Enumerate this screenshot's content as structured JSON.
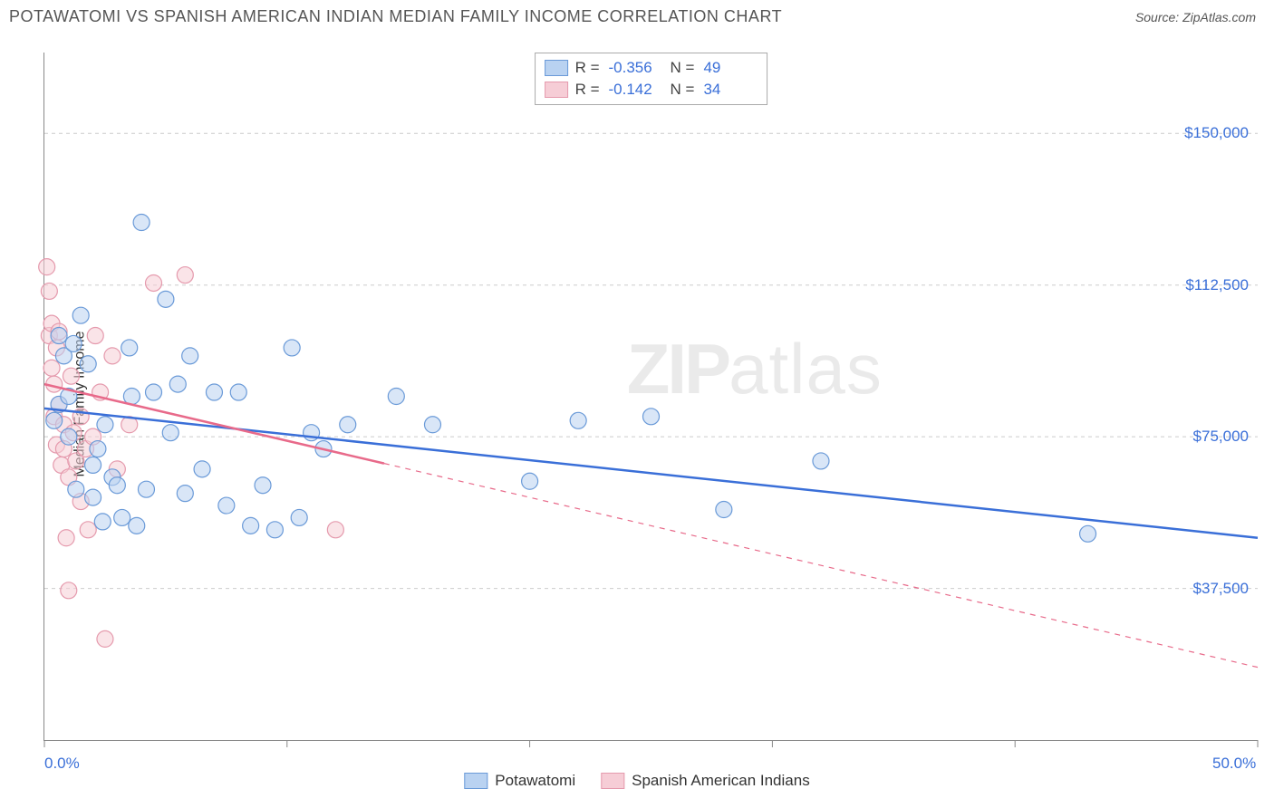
{
  "header": {
    "title": "POTAWATOMI VS SPANISH AMERICAN INDIAN MEDIAN FAMILY INCOME CORRELATION CHART",
    "source_label": "Source:",
    "source_name": "ZipAtlas.com"
  },
  "watermark": {
    "zip": "ZIP",
    "atlas": "atlas"
  },
  "chart": {
    "type": "scatter",
    "ylabel": "Median Family Income",
    "background_color": "#ffffff",
    "grid_color": "#cccccc",
    "axis_color": "#888888",
    "label_color_blue": "#3a6fd8",
    "xlim": [
      0,
      50
    ],
    "ylim": [
      0,
      170000
    ],
    "x_ticks": [
      0,
      10,
      20,
      30,
      40,
      50
    ],
    "x_tick_labels": {
      "0": "0.0%",
      "50": "50.0%"
    },
    "y_ticks": [
      37500,
      75000,
      112500,
      150000
    ],
    "y_tick_labels": [
      "$37,500",
      "$75,000",
      "$112,500",
      "$150,000"
    ],
    "marker_radius": 9,
    "marker_opacity": 0.55,
    "line_width": 2.5,
    "series": [
      {
        "name": "Potawatomi",
        "color_fill": "#b9d2f1",
        "color_stroke": "#6a9ad8",
        "R": "-0.356",
        "N": "49",
        "trend": {
          "x1": 0,
          "y1": 82000,
          "x2": 50,
          "y2": 50000,
          "solid_until_x": 50
        },
        "points": [
          [
            0.4,
            79000
          ],
          [
            0.6,
            83000
          ],
          [
            0.6,
            100000
          ],
          [
            0.8,
            95000
          ],
          [
            1.0,
            75000
          ],
          [
            1.0,
            85000
          ],
          [
            1.2,
            98000
          ],
          [
            1.3,
            62000
          ],
          [
            1.5,
            105000
          ],
          [
            1.8,
            93000
          ],
          [
            2.0,
            60000
          ],
          [
            2.0,
            68000
          ],
          [
            2.2,
            72000
          ],
          [
            2.4,
            54000
          ],
          [
            2.5,
            78000
          ],
          [
            2.8,
            65000
          ],
          [
            3.0,
            63000
          ],
          [
            3.2,
            55000
          ],
          [
            3.5,
            97000
          ],
          [
            3.6,
            85000
          ],
          [
            3.8,
            53000
          ],
          [
            4.0,
            128000
          ],
          [
            4.2,
            62000
          ],
          [
            4.5,
            86000
          ],
          [
            5.0,
            109000
          ],
          [
            5.2,
            76000
          ],
          [
            5.5,
            88000
          ],
          [
            5.8,
            61000
          ],
          [
            6.0,
            95000
          ],
          [
            6.5,
            67000
          ],
          [
            7.0,
            86000
          ],
          [
            7.5,
            58000
          ],
          [
            8.0,
            86000
          ],
          [
            8.5,
            53000
          ],
          [
            9.0,
            63000
          ],
          [
            9.5,
            52000
          ],
          [
            10.2,
            97000
          ],
          [
            10.5,
            55000
          ],
          [
            11.0,
            76000
          ],
          [
            11.5,
            72000
          ],
          [
            12.5,
            78000
          ],
          [
            14.5,
            85000
          ],
          [
            16.0,
            78000
          ],
          [
            20.0,
            64000
          ],
          [
            22.0,
            79000
          ],
          [
            25.0,
            80000
          ],
          [
            28.0,
            57000
          ],
          [
            32.0,
            69000
          ],
          [
            43.0,
            51000
          ]
        ]
      },
      {
        "name": "Spanish American Indians",
        "color_fill": "#f6cdd6",
        "color_stroke": "#e59aad",
        "R": "-0.142",
        "N": "34",
        "trend": {
          "x1": 0,
          "y1": 88000,
          "x2": 50,
          "y2": 18000,
          "solid_until_x": 14
        },
        "points": [
          [
            0.1,
            117000
          ],
          [
            0.2,
            111000
          ],
          [
            0.2,
            100000
          ],
          [
            0.3,
            103000
          ],
          [
            0.3,
            92000
          ],
          [
            0.4,
            88000
          ],
          [
            0.4,
            80000
          ],
          [
            0.5,
            97000
          ],
          [
            0.5,
            73000
          ],
          [
            0.6,
            101000
          ],
          [
            0.6,
            83000
          ],
          [
            0.7,
            68000
          ],
          [
            0.8,
            78000
          ],
          [
            0.8,
            72000
          ],
          [
            0.9,
            50000
          ],
          [
            1.0,
            65000
          ],
          [
            1.0,
            37000
          ],
          [
            1.1,
            90000
          ],
          [
            1.2,
            76000
          ],
          [
            1.3,
            69000
          ],
          [
            1.5,
            80000
          ],
          [
            1.5,
            59000
          ],
          [
            1.7,
            72000
          ],
          [
            1.8,
            52000
          ],
          [
            2.0,
            75000
          ],
          [
            2.1,
            100000
          ],
          [
            2.3,
            86000
          ],
          [
            2.5,
            25000
          ],
          [
            2.8,
            95000
          ],
          [
            3.0,
            67000
          ],
          [
            3.5,
            78000
          ],
          [
            4.5,
            113000
          ],
          [
            5.8,
            115000
          ],
          [
            12.0,
            52000
          ]
        ]
      }
    ],
    "legend_bottom": [
      "Potawatomi",
      "Spanish American Indians"
    ]
  }
}
